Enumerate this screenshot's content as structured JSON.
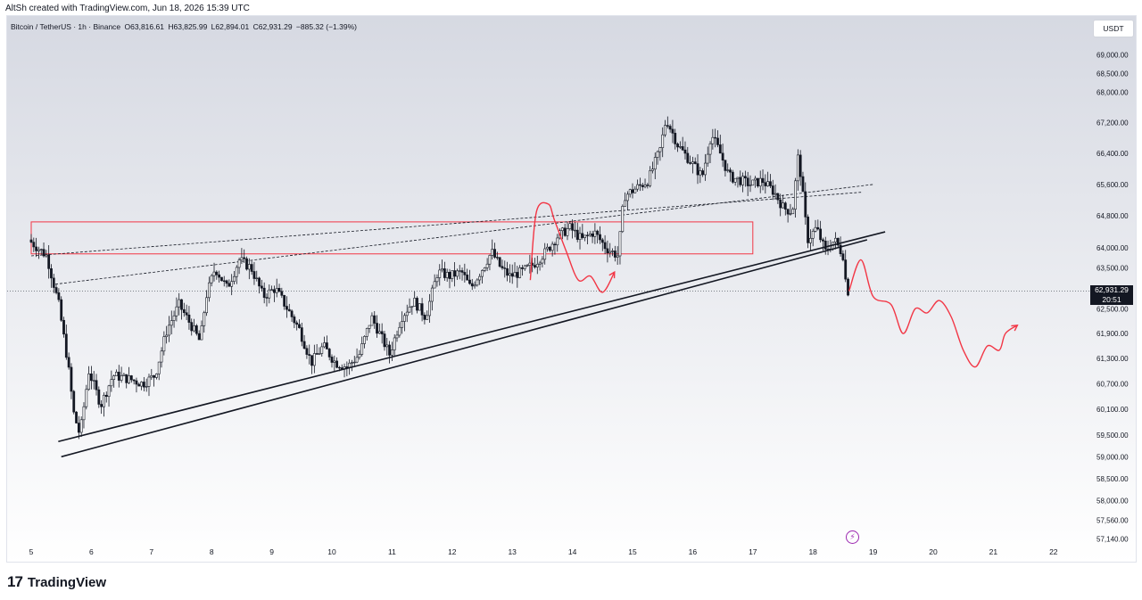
{
  "header": {
    "credit": "AltSh created with TradingView.com, Jun 18, 2026 15:39 UTC"
  },
  "symbol_info": {
    "symbol": "Bitcoin / TetherUS · 1h · Binance",
    "open": "O63,816.61",
    "high": "H63,825.99",
    "low": "L62,894.01",
    "close": "C62,931.29",
    "change": "−885.32 (−1.39%)"
  },
  "currency_button": "USDT",
  "price_tag": {
    "price": "62,931.29",
    "countdown": "20:51"
  },
  "footer": {
    "logo_mark": "17",
    "logo_text": "TradingView"
  },
  "colors": {
    "background_top": "#d6d9e2",
    "background_bottom": "#ffffff",
    "candle": "#131722",
    "projection": "#f23645",
    "box": "#f23645",
    "icon": "#9c27b0"
  },
  "chart_data": {
    "type": "candlestick",
    "symbol": "Bitcoin / TetherUS",
    "interval": "1h",
    "exchange": "Binance",
    "x_tick_labels": [
      "5",
      "6",
      "7",
      "8",
      "9",
      "10",
      "11",
      "12",
      "13",
      "14",
      "15",
      "16",
      "17",
      "18",
      "19",
      "20",
      "21",
      "22"
    ],
    "y_tick_labels": [
      "69,000.00",
      "68,500.00",
      "68,000.00",
      "67,200.00",
      "66,400.00",
      "65,600.00",
      "64,800.00",
      "64,000.00",
      "63,500.00",
      "62,500.00",
      "61,900.00",
      "61,300.00",
      "60,700.00",
      "60,100.00",
      "59,500.00",
      "59,000.00",
      "58,500.00",
      "58,000.00",
      "57,560.00",
      "57,140.00"
    ],
    "y_scale": "log",
    "ylim": [
      57000,
      69500
    ],
    "last_price": 62931.29,
    "price_path": [
      [
        5.0,
        64200
      ],
      [
        5.3,
        63800
      ],
      [
        5.5,
        62600
      ],
      [
        5.65,
        61200
      ],
      [
        5.75,
        60000
      ],
      [
        5.85,
        59500
      ],
      [
        6.0,
        61000
      ],
      [
        6.2,
        60200
      ],
      [
        6.4,
        60900
      ],
      [
        6.7,
        60800
      ],
      [
        6.9,
        60700
      ],
      [
        7.1,
        60900
      ],
      [
        7.3,
        62000
      ],
      [
        7.5,
        62600
      ],
      [
        7.7,
        62100
      ],
      [
        7.85,
        61700
      ],
      [
        7.95,
        62800
      ],
      [
        8.1,
        63500
      ],
      [
        8.3,
        63000
      ],
      [
        8.5,
        63700
      ],
      [
        8.7,
        63500
      ],
      [
        8.9,
        62800
      ],
      [
        9.1,
        63000
      ],
      [
        9.3,
        62500
      ],
      [
        9.5,
        62000
      ],
      [
        9.7,
        61200
      ],
      [
        9.9,
        61600
      ],
      [
        10.1,
        61200
      ],
      [
        10.3,
        61100
      ],
      [
        10.5,
        61400
      ],
      [
        10.7,
        62300
      ],
      [
        10.9,
        61700
      ],
      [
        11.0,
        61400
      ],
      [
        11.2,
        62300
      ],
      [
        11.4,
        62700
      ],
      [
        11.6,
        62300
      ],
      [
        11.8,
        63400
      ],
      [
        12.0,
        63300
      ],
      [
        12.2,
        63400
      ],
      [
        12.35,
        63000
      ],
      [
        12.55,
        63500
      ],
      [
        12.7,
        63900
      ],
      [
        12.85,
        63500
      ],
      [
        13.0,
        63300
      ],
      [
        13.2,
        63400
      ],
      [
        13.4,
        63600
      ],
      [
        13.6,
        63900
      ],
      [
        13.8,
        64300
      ],
      [
        14.0,
        64500
      ],
      [
        14.2,
        64200
      ],
      [
        14.4,
        64400
      ],
      [
        14.6,
        64000
      ],
      [
        14.8,
        63800
      ],
      [
        14.9,
        65300
      ],
      [
        15.1,
        65500
      ],
      [
        15.3,
        65700
      ],
      [
        15.5,
        66500
      ],
      [
        15.6,
        67300
      ],
      [
        15.8,
        66600
      ],
      [
        16.0,
        66200
      ],
      [
        16.2,
        65800
      ],
      [
        16.35,
        66900
      ],
      [
        16.5,
        66400
      ],
      [
        16.65,
        65800
      ],
      [
        16.85,
        65700
      ],
      [
        17.0,
        65600
      ],
      [
        17.2,
        65700
      ],
      [
        17.4,
        65400
      ],
      [
        17.55,
        65000
      ],
      [
        17.7,
        64900
      ],
      [
        17.8,
        66400
      ],
      [
        17.95,
        64200
      ],
      [
        18.1,
        64500
      ],
      [
        18.25,
        63900
      ],
      [
        18.4,
        64200
      ],
      [
        18.55,
        63800
      ],
      [
        18.6,
        62931
      ]
    ],
    "projection_path": [
      [
        18.6,
        62931
      ],
      [
        18.8,
        63700
      ],
      [
        19.0,
        62800
      ],
      [
        19.3,
        62600
      ],
      [
        19.5,
        61900
      ],
      [
        19.7,
        62500
      ],
      [
        19.9,
        62400
      ],
      [
        20.1,
        62700
      ],
      [
        20.3,
        62300
      ],
      [
        20.5,
        61500
      ],
      [
        20.7,
        61100
      ],
      [
        20.9,
        61600
      ],
      [
        21.1,
        61500
      ],
      [
        21.2,
        61900
      ],
      [
        21.4,
        62100
      ]
    ],
    "earlier_projection_path": [
      [
        13.3,
        63200
      ],
      [
        13.4,
        64900
      ],
      [
        13.6,
        65100
      ],
      [
        13.7,
        64700
      ],
      [
        13.9,
        63900
      ],
      [
        14.1,
        63200
      ],
      [
        14.3,
        63300
      ],
      [
        14.5,
        62900
      ],
      [
        14.7,
        63400
      ]
    ],
    "support_channel": {
      "upper": [
        [
          5.45,
          59350
        ],
        [
          19.2,
          64400
        ]
      ],
      "lower": [
        [
          5.5,
          59000
        ],
        [
          18.9,
          64200
        ]
      ]
    },
    "dashed_trendlines": [
      [
        [
          5.0,
          63800
        ],
        [
          18.8,
          65400
        ]
      ],
      [
        [
          5.4,
          63100
        ],
        [
          19.0,
          65600
        ]
      ]
    ],
    "resistance_box": {
      "x": [
        5.0,
        17.0
      ],
      "y": [
        63850,
        64650
      ]
    }
  }
}
